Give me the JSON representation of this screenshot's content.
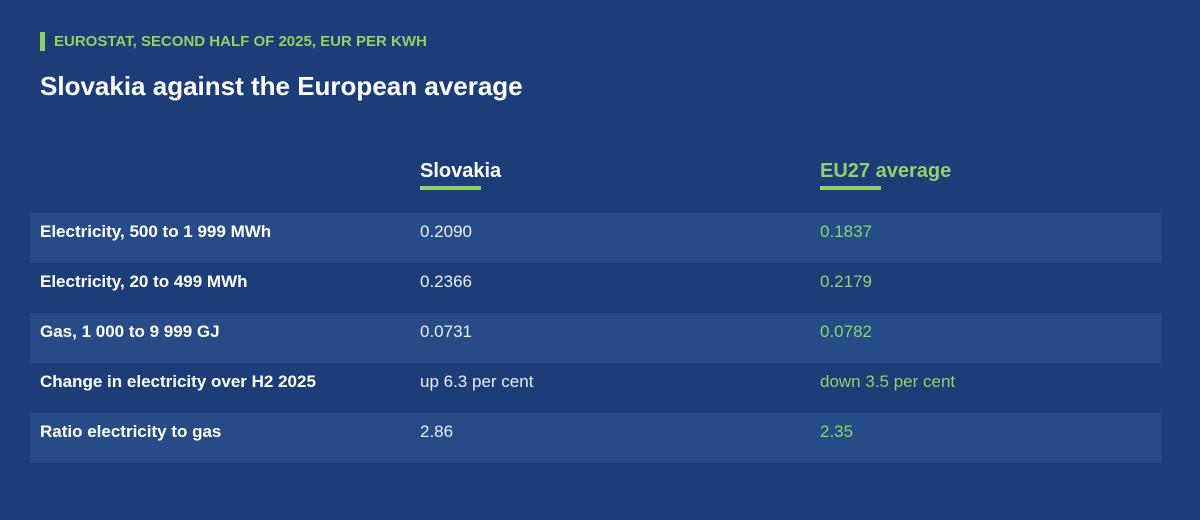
{
  "header": {
    "kicker": "EUROSTAT, SECOND HALF OF 2025, EUR PER KWH",
    "title": "Slovakia against the European average"
  },
  "table": {
    "columns": [
      "Slovakia",
      "EU27 average"
    ],
    "rows": [
      [
        "Electricity, 500 to 1 999 MWh",
        "0.2090",
        "0.1837"
      ],
      [
        "Electricity, 20 to 499 MWh",
        "0.2366",
        "0.2179"
      ],
      [
        "Gas, 1 000 to 9 999 GJ",
        "0.0731",
        "0.0782"
      ],
      [
        "Change in electricity over H2 2025",
        "up 6.3 per cent",
        "down 3.5 per cent"
      ],
      [
        "Ratio electricity to gas",
        "2.86",
        "2.35"
      ]
    ]
  }
}
